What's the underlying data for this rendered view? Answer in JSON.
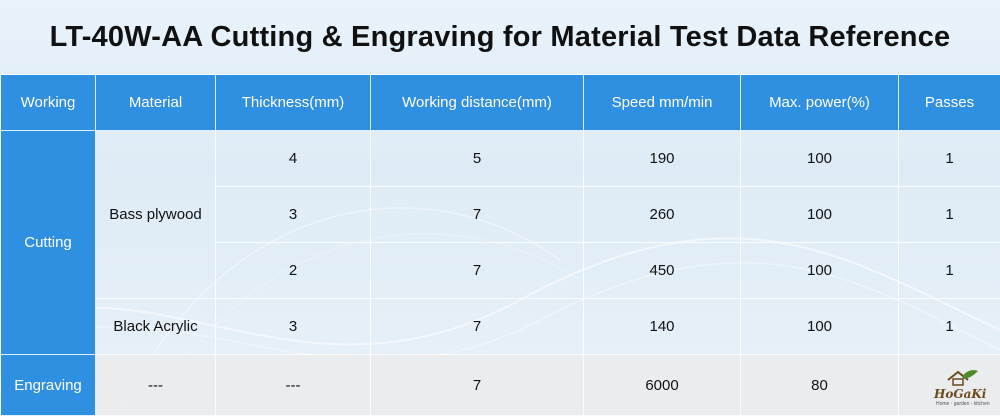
{
  "title": "LT-40W-AA Cutting & Engraving for Material Test Data Reference",
  "colors": {
    "header_bg": "#2f8fe0",
    "header_text": "#ffffff",
    "accent_logo": "#6b4a1e"
  },
  "table": {
    "headers": [
      "Working",
      "Material",
      "Thickness(mm)",
      "Working distance(mm)",
      "Speed mm/min",
      "Max. power(%)",
      "Passes"
    ],
    "cutting": {
      "label": "Cutting",
      "materials": [
        {
          "name": "Bass plywood"
        },
        {
          "name": "Black Acrylic"
        }
      ],
      "rows": [
        {
          "thickness": "4",
          "distance": "5",
          "speed": "190",
          "power": "100",
          "passes": "1"
        },
        {
          "thickness": "3",
          "distance": "7",
          "speed": "260",
          "power": "100",
          "passes": "1"
        },
        {
          "thickness": "2",
          "distance": "7",
          "speed": "450",
          "power": "100",
          "passes": "1"
        },
        {
          "thickness": "3",
          "distance": "7",
          "speed": "140",
          "power": "100",
          "passes": "1"
        }
      ]
    },
    "engraving": {
      "label": "Engraving",
      "material": "---",
      "thickness": "---",
      "distance": "7",
      "speed": "6000",
      "power": "80",
      "passes": ""
    }
  },
  "logo": {
    "brand": "HoGaKi",
    "tagline": "Home · garden · kitchen",
    "icon": "house-leaf-icon"
  }
}
